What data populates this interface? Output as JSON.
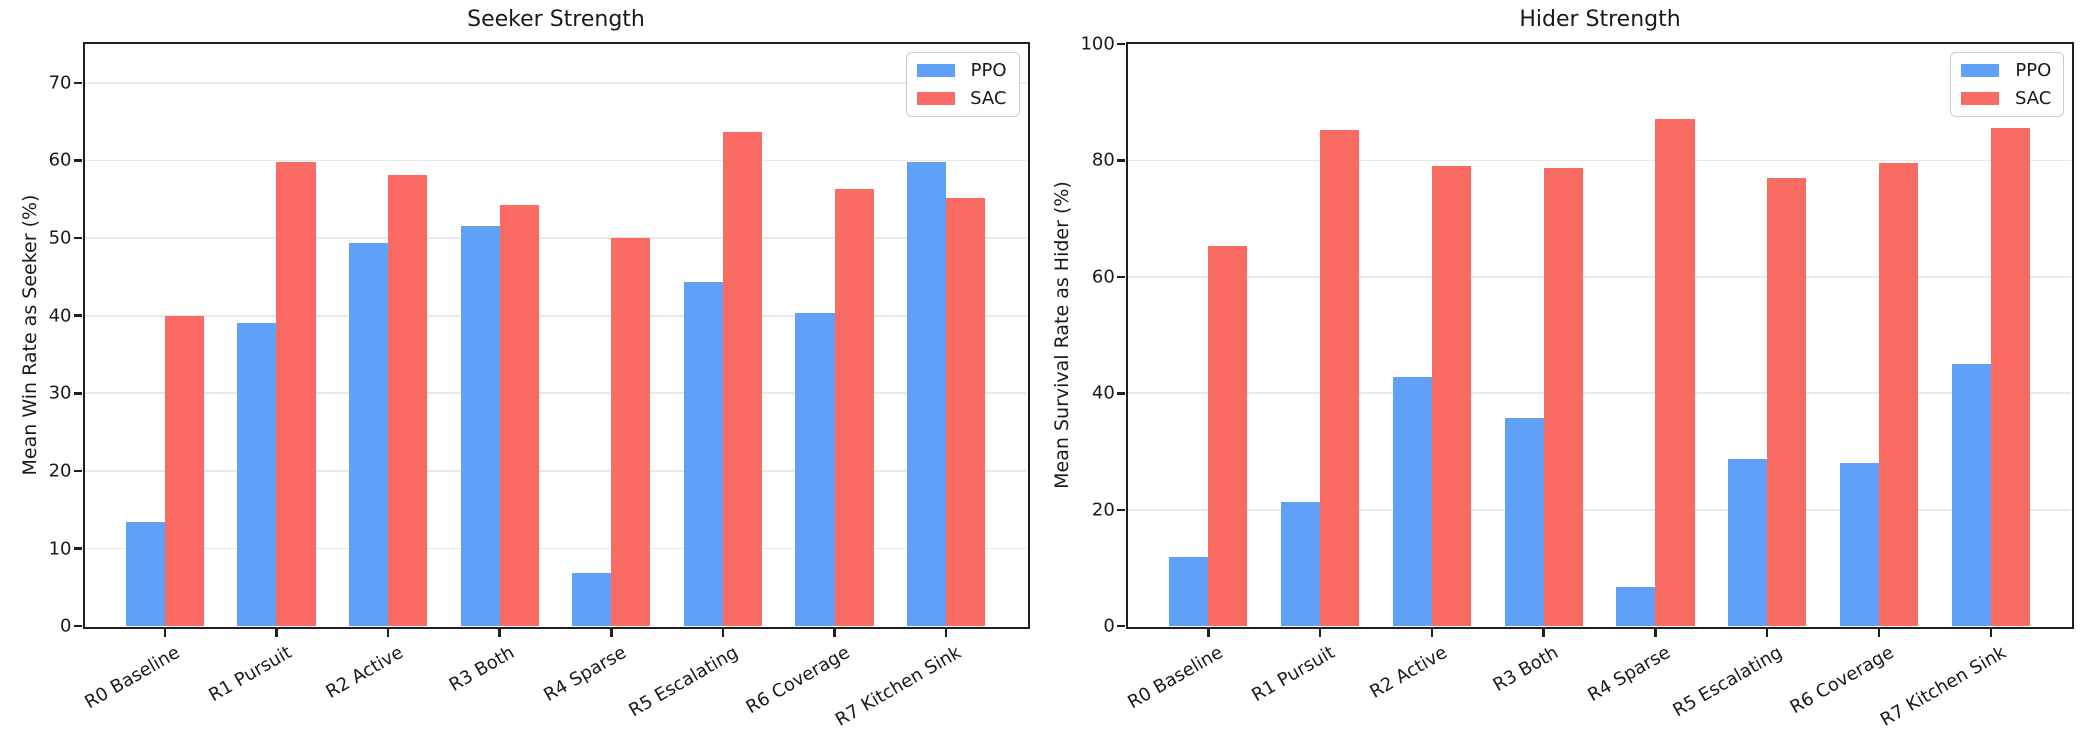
{
  "chart_data": [
    {
      "type": "bar",
      "title": "Seeker Strength",
      "xlabel": "",
      "ylabel": "Mean Win Rate as Seeker (%)",
      "ylim": [
        0,
        75
      ],
      "yticks": [
        0,
        10,
        20,
        30,
        40,
        50,
        60,
        70
      ],
      "grid": "horizontal",
      "legend_position": "upper right",
      "categories": [
        "R0 Baseline",
        "R1 Pursuit",
        "R2 Active",
        "R3 Both",
        "R4 Sparse",
        "R5 Escalating",
        "R6 Coverage",
        "R7 Kitchen Sink"
      ],
      "series": [
        {
          "name": "PPO",
          "color": "#61A0F7",
          "values": [
            13.4,
            39.1,
            49.4,
            51.6,
            6.8,
            44.4,
            40.3,
            59.8
          ]
        },
        {
          "name": "SAC",
          "color": "#F96B63",
          "values": [
            40.0,
            59.8,
            58.1,
            54.3,
            50.0,
            63.7,
            56.3,
            55.1
          ]
        }
      ]
    },
    {
      "type": "bar",
      "title": "Hider Strength",
      "xlabel": "",
      "ylabel": "Mean Survival Rate as Hider (%)",
      "ylim": [
        0,
        100
      ],
      "yticks": [
        0,
        20,
        40,
        60,
        80,
        100
      ],
      "grid": "horizontal",
      "legend_position": "upper right",
      "categories": [
        "R0 Baseline",
        "R1 Pursuit",
        "R2 Active",
        "R3 Both",
        "R4 Sparse",
        "R5 Escalating",
        "R6 Coverage",
        "R7 Kitchen Sink"
      ],
      "series": [
        {
          "name": "PPO",
          "color": "#61A0F7",
          "values": [
            11.9,
            21.3,
            42.8,
            35.8,
            6.7,
            28.7,
            28.1,
            45.0
          ]
        },
        {
          "name": "SAC",
          "color": "#F96B63",
          "values": [
            65.3,
            85.2,
            79.1,
            78.7,
            87.2,
            76.9,
            79.6,
            85.6
          ]
        }
      ]
    }
  ]
}
